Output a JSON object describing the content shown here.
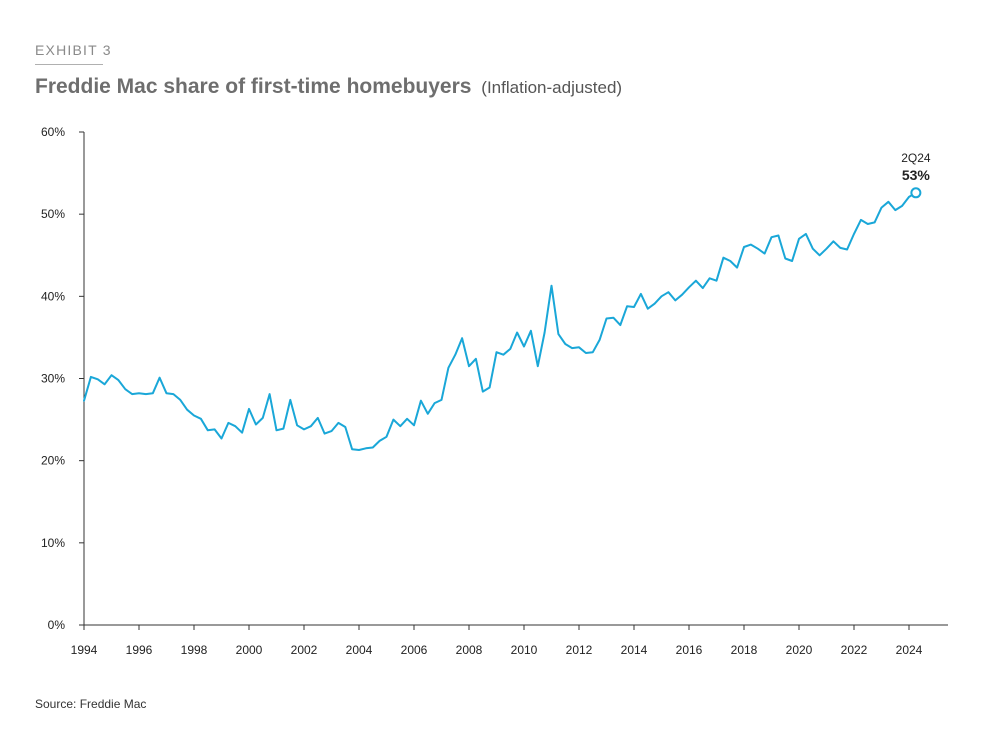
{
  "header": {
    "exhibit": "EXHIBIT 3",
    "title": "Freddie Mac share of first-time homebuyers",
    "subtitle": "(Inflation-adjusted)"
  },
  "footer": {
    "source": "Source: Freddie Mac"
  },
  "colors": {
    "line": "#1aa7d8",
    "axis": "#333333"
  },
  "chart_data": {
    "type": "line",
    "title": "Freddie Mac share of first-time homebuyers (Inflation-adjusted)",
    "xlabel": "",
    "ylabel": "",
    "xlim": [
      1994,
      2025
    ],
    "ylim": [
      0,
      60
    ],
    "y_ticks": [
      0,
      10,
      20,
      30,
      40,
      50,
      60
    ],
    "y_tick_labels": [
      "0%",
      "10%",
      "20%",
      "30%",
      "40%",
      "50%",
      "60%"
    ],
    "x_ticks": [
      1994,
      1996,
      1998,
      2000,
      2002,
      2004,
      2006,
      2008,
      2010,
      2012,
      2014,
      2016,
      2018,
      2020,
      2022,
      2024
    ],
    "x_tick_labels": [
      "1994",
      "1996",
      "1998",
      "2000",
      "2002",
      "2004",
      "2006",
      "2008",
      "2010",
      "2012",
      "2014",
      "2016",
      "2018",
      "2020",
      "2022",
      "2024"
    ],
    "grid": false,
    "series": [
      {
        "name": "Freddie Mac share of first-time homebuyers",
        "x": [
          1994.0,
          1994.25,
          1994.5,
          1994.75,
          1995.0,
          1995.25,
          1995.5,
          1995.75,
          1996.0,
          1996.25,
          1996.5,
          1996.75,
          1997.0,
          1997.25,
          1997.5,
          1997.75,
          1998.0,
          1998.25,
          1998.5,
          1998.75,
          1999.0,
          1999.25,
          1999.5,
          1999.75,
          2000.0,
          2000.25,
          2000.5,
          2000.75,
          2001.0,
          2001.25,
          2001.5,
          2001.75,
          2002.0,
          2002.25,
          2002.5,
          2002.75,
          2003.0,
          2003.25,
          2003.5,
          2003.75,
          2004.0,
          2004.25,
          2004.5,
          2004.75,
          2005.0,
          2005.25,
          2005.5,
          2005.75,
          2006.0,
          2006.25,
          2006.5,
          2006.75,
          2007.0,
          2007.25,
          2007.5,
          2007.75,
          2008.0,
          2008.25,
          2008.5,
          2008.75,
          2009.0,
          2009.25,
          2009.5,
          2009.75,
          2010.0,
          2010.25,
          2010.5,
          2010.75,
          2011.0,
          2011.25,
          2011.5,
          2011.75,
          2012.0,
          2012.25,
          2012.5,
          2012.75,
          2013.0,
          2013.25,
          2013.5,
          2013.75,
          2014.0,
          2014.25,
          2014.5,
          2014.75,
          2015.0,
          2015.25,
          2015.5,
          2015.75,
          2016.0,
          2016.25,
          2016.5,
          2016.75,
          2017.0,
          2017.25,
          2017.5,
          2017.75,
          2018.0,
          2018.25,
          2018.5,
          2018.75,
          2019.0,
          2019.25,
          2019.5,
          2019.75,
          2020.0,
          2020.25,
          2020.5,
          2020.75,
          2021.0,
          2021.25,
          2021.5,
          2021.75,
          2022.0,
          2022.25,
          2022.5,
          2022.75,
          2023.0,
          2023.25,
          2023.5,
          2023.75,
          2024.0,
          2024.25
        ],
        "values": [
          27.3,
          30.2,
          29.9,
          29.3,
          30.4,
          29.8,
          28.7,
          28.1,
          28.2,
          28.1,
          28.2,
          30.1,
          28.2,
          28.1,
          27.4,
          26.2,
          25.5,
          25.1,
          23.7,
          23.8,
          22.7,
          24.6,
          24.2,
          23.4,
          26.3,
          24.4,
          25.2,
          28.1,
          23.7,
          23.9,
          27.4,
          24.3,
          23.8,
          24.2,
          25.2,
          23.3,
          23.6,
          24.6,
          24.1,
          21.4,
          21.3,
          21.5,
          21.6,
          22.4,
          22.9,
          25.0,
          24.2,
          25.1,
          24.3,
          27.3,
          25.7,
          27.0,
          27.4,
          31.3,
          32.9,
          34.9,
          31.5,
          32.4,
          28.4,
          28.9,
          33.2,
          32.9,
          33.6,
          35.6,
          33.9,
          35.8,
          31.5,
          35.6,
          41.3,
          35.4,
          34.2,
          33.7,
          33.8,
          33.1,
          33.2,
          34.7,
          37.3,
          37.4,
          36.5,
          38.8,
          38.7,
          40.3,
          38.5,
          39.1,
          40.0,
          40.5,
          39.5,
          40.2,
          41.1,
          41.9,
          41.0,
          42.2,
          41.9,
          44.7,
          44.3,
          43.5,
          46.0,
          46.3,
          45.8,
          45.2,
          47.2,
          47.4,
          44.6,
          44.3,
          47.0,
          47.6,
          45.8,
          45.0,
          45.8,
          46.7,
          45.9,
          45.7,
          47.6,
          49.3,
          48.8,
          49.0,
          50.8,
          51.5,
          50.5,
          51.0,
          52.1,
          52.6
        ]
      }
    ],
    "annotations": [
      {
        "label": "2Q24",
        "value_label": "53%",
        "x": 2024.25,
        "y": 52.6
      }
    ]
  }
}
